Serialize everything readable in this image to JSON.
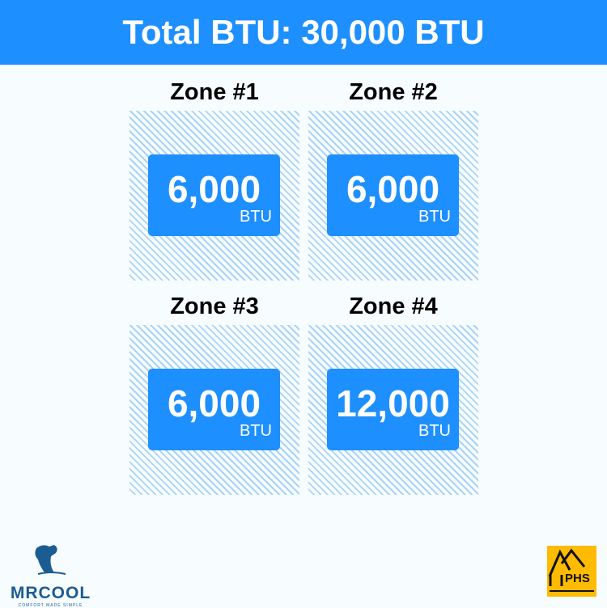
{
  "header": {
    "title": "Total BTU: 30,000 BTU"
  },
  "zones": [
    {
      "title": "Zone #1",
      "value": "6,000",
      "unit": "BTU"
    },
    {
      "title": "Zone #2",
      "value": "6,000",
      "unit": "BTU"
    },
    {
      "title": "Zone #3",
      "value": "6,000",
      "unit": "BTU"
    },
    {
      "title": "Zone #4",
      "value": "12,000",
      "unit": "BTU"
    }
  ],
  "logos": {
    "left": {
      "name": "MRCOOL",
      "tagline": "COMFORT MADE SIMPLE"
    },
    "right": {
      "name": "PHS"
    }
  },
  "colors": {
    "accent": "#1e8fff",
    "stripe": "#a9d3fa",
    "phs": "#ffbb00",
    "mrcool": "#1b5c93"
  }
}
